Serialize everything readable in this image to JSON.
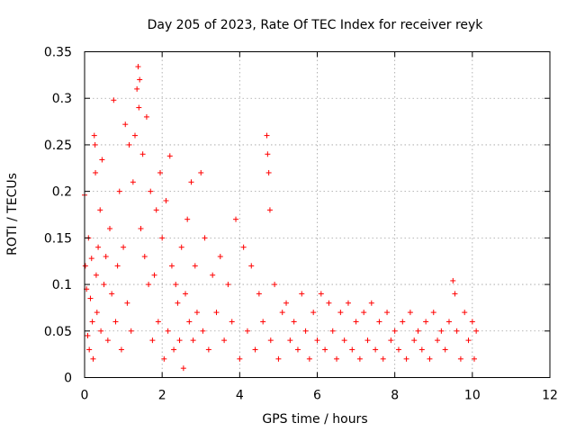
{
  "chart_data": {
    "type": "scatter",
    "title": "Day 205 of 2023, Rate Of TEC Index for receiver reyk",
    "xlabel": "GPS time / hours",
    "ylabel": "ROTI / TECUs",
    "xlim": [
      0,
      12
    ],
    "ylim": [
      0,
      0.35
    ],
    "xticks": [
      0,
      2,
      4,
      6,
      8,
      10,
      12
    ],
    "xtick_labels": [
      "0",
      "2",
      "4",
      "6",
      "8",
      "10",
      "12"
    ],
    "yticks": [
      0,
      0.05,
      0.1,
      0.15,
      0.2,
      0.25,
      0.3,
      0.35
    ],
    "ytick_labels": [
      "0",
      "0.05",
      "0.1",
      "0.15",
      "0.2",
      "0.25",
      "0.3",
      "0.35"
    ],
    "grid": true,
    "marker": "+",
    "color": "#ff0000",
    "series": [
      {
        "name": "ROTI",
        "points": [
          [
            0.0,
            0.196
          ],
          [
            0.02,
            0.12
          ],
          [
            0.05,
            0.095
          ],
          [
            0.08,
            0.045
          ],
          [
            0.1,
            0.15
          ],
          [
            0.12,
            0.03
          ],
          [
            0.15,
            0.085
          ],
          [
            0.18,
            0.128
          ],
          [
            0.2,
            0.06
          ],
          [
            0.22,
            0.02
          ],
          [
            0.25,
            0.26
          ],
          [
            0.27,
            0.25
          ],
          [
            0.28,
            0.22
          ],
          [
            0.3,
            0.11
          ],
          [
            0.32,
            0.07
          ],
          [
            0.35,
            0.14
          ],
          [
            0.4,
            0.18
          ],
          [
            0.42,
            0.05
          ],
          [
            0.45,
            0.234
          ],
          [
            0.5,
            0.1
          ],
          [
            0.55,
            0.13
          ],
          [
            0.6,
            0.04
          ],
          [
            0.65,
            0.16
          ],
          [
            0.7,
            0.09
          ],
          [
            0.75,
            0.298
          ],
          [
            0.8,
            0.06
          ],
          [
            0.85,
            0.12
          ],
          [
            0.9,
            0.2
          ],
          [
            0.95,
            0.03
          ],
          [
            1.0,
            0.14
          ],
          [
            1.05,
            0.272
          ],
          [
            1.1,
            0.08
          ],
          [
            1.15,
            0.25
          ],
          [
            1.2,
            0.05
          ],
          [
            1.25,
            0.21
          ],
          [
            1.3,
            0.26
          ],
          [
            1.35,
            0.31
          ],
          [
            1.38,
            0.334
          ],
          [
            1.4,
            0.29
          ],
          [
            1.42,
            0.32
          ],
          [
            1.45,
            0.16
          ],
          [
            1.5,
            0.24
          ],
          [
            1.55,
            0.13
          ],
          [
            1.6,
            0.28
          ],
          [
            1.65,
            0.1
          ],
          [
            1.7,
            0.2
          ],
          [
            1.75,
            0.04
          ],
          [
            1.8,
            0.11
          ],
          [
            1.85,
            0.18
          ],
          [
            1.9,
            0.06
          ],
          [
            1.95,
            0.22
          ],
          [
            2.0,
            0.15
          ],
          [
            2.05,
            0.02
          ],
          [
            2.1,
            0.19
          ],
          [
            2.15,
            0.05
          ],
          [
            2.2,
            0.238
          ],
          [
            2.25,
            0.12
          ],
          [
            2.3,
            0.03
          ],
          [
            2.35,
            0.1
          ],
          [
            2.4,
            0.08
          ],
          [
            2.45,
            0.04
          ],
          [
            2.5,
            0.14
          ],
          [
            2.55,
            0.01
          ],
          [
            2.6,
            0.09
          ],
          [
            2.65,
            0.17
          ],
          [
            2.7,
            0.06
          ],
          [
            2.75,
            0.21
          ],
          [
            2.8,
            0.04
          ],
          [
            2.85,
            0.12
          ],
          [
            2.9,
            0.07
          ],
          [
            3.0,
            0.22
          ],
          [
            3.05,
            0.05
          ],
          [
            3.1,
            0.15
          ],
          [
            3.2,
            0.03
          ],
          [
            3.3,
            0.11
          ],
          [
            3.4,
            0.07
          ],
          [
            3.5,
            0.13
          ],
          [
            3.6,
            0.04
          ],
          [
            3.7,
            0.1
          ],
          [
            3.8,
            0.06
          ],
          [
            3.9,
            0.17
          ],
          [
            4.0,
            0.02
          ],
          [
            4.1,
            0.14
          ],
          [
            4.2,
            0.05
          ],
          [
            4.3,
            0.12
          ],
          [
            4.4,
            0.03
          ],
          [
            4.5,
            0.09
          ],
          [
            4.6,
            0.06
          ],
          [
            4.7,
            0.26
          ],
          [
            4.72,
            0.24
          ],
          [
            4.75,
            0.22
          ],
          [
            4.78,
            0.18
          ],
          [
            4.8,
            0.04
          ],
          [
            4.9,
            0.1
          ],
          [
            5.0,
            0.02
          ],
          [
            5.1,
            0.07
          ],
          [
            5.2,
            0.08
          ],
          [
            5.3,
            0.04
          ],
          [
            5.4,
            0.06
          ],
          [
            5.5,
            0.03
          ],
          [
            5.6,
            0.09
          ],
          [
            5.7,
            0.05
          ],
          [
            5.8,
            0.02
          ],
          [
            5.9,
            0.07
          ],
          [
            6.0,
            0.04
          ],
          [
            6.1,
            0.09
          ],
          [
            6.2,
            0.03
          ],
          [
            6.3,
            0.08
          ],
          [
            6.4,
            0.05
          ],
          [
            6.5,
            0.02
          ],
          [
            6.6,
            0.07
          ],
          [
            6.7,
            0.04
          ],
          [
            6.8,
            0.08
          ],
          [
            6.9,
            0.03
          ],
          [
            7.0,
            0.06
          ],
          [
            7.1,
            0.02
          ],
          [
            7.2,
            0.07
          ],
          [
            7.3,
            0.04
          ],
          [
            7.4,
            0.08
          ],
          [
            7.5,
            0.03
          ],
          [
            7.6,
            0.06
          ],
          [
            7.7,
            0.02
          ],
          [
            7.8,
            0.07
          ],
          [
            7.9,
            0.04
          ],
          [
            8.0,
            0.05
          ],
          [
            8.1,
            0.03
          ],
          [
            8.2,
            0.06
          ],
          [
            8.3,
            0.02
          ],
          [
            8.4,
            0.07
          ],
          [
            8.5,
            0.04
          ],
          [
            8.6,
            0.05
          ],
          [
            8.7,
            0.03
          ],
          [
            8.8,
            0.06
          ],
          [
            8.9,
            0.02
          ],
          [
            9.0,
            0.07
          ],
          [
            9.1,
            0.04
          ],
          [
            9.2,
            0.05
          ],
          [
            9.3,
            0.03
          ],
          [
            9.4,
            0.06
          ],
          [
            9.5,
            0.104
          ],
          [
            9.55,
            0.09
          ],
          [
            9.6,
            0.05
          ],
          [
            9.7,
            0.02
          ],
          [
            9.8,
            0.07
          ],
          [
            9.9,
            0.04
          ],
          [
            10.0,
            0.06
          ],
          [
            10.05,
            0.02
          ],
          [
            10.1,
            0.05
          ]
        ]
      }
    ]
  }
}
